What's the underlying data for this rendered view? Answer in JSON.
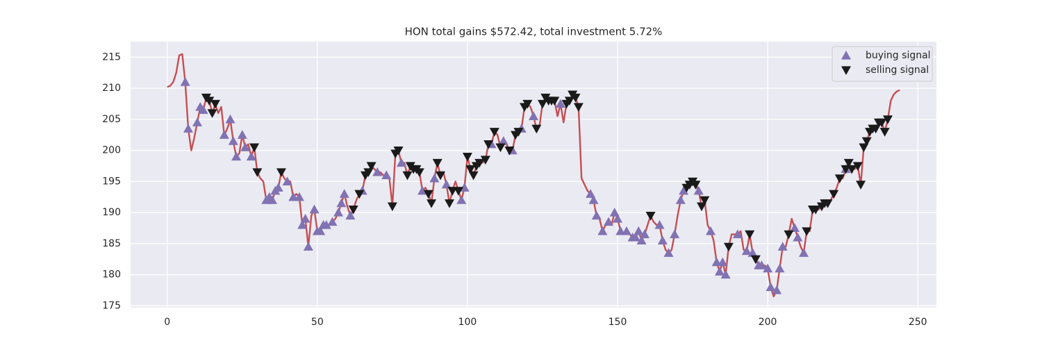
{
  "chart_data": {
    "type": "line",
    "title": "HON total gains $572.42, total investment 5.72%",
    "xlim": [
      -12.2,
      256.2
    ],
    "ylim": [
      174.7,
      217.5
    ],
    "xticks": [
      0,
      50,
      100,
      150,
      200,
      250
    ],
    "yticks": [
      175,
      180,
      185,
      190,
      195,
      200,
      205,
      210,
      215
    ],
    "grid": true,
    "legend": "upper right",
    "line": {
      "color": "#c44e52",
      "values": [
        210.2,
        210.4,
        211,
        212.5,
        215.3,
        215.5,
        211,
        203.5,
        200,
        202,
        204.5,
        207,
        206.5,
        208.5,
        208,
        206,
        207.5,
        206,
        207,
        202.5,
        203.5,
        205,
        201.5,
        199,
        199.5,
        202.5,
        200.5,
        201,
        199,
        200.5,
        196.5,
        195.5,
        195,
        192,
        192.5,
        192,
        193.5,
        194,
        196.5,
        195.5,
        195,
        195,
        192.5,
        193,
        192.5,
        188,
        189,
        184.5,
        189.5,
        190.5,
        187,
        187,
        188,
        188,
        188,
        188.5,
        189,
        190,
        191.5,
        193,
        191,
        189.5,
        190.5,
        192,
        193,
        193.5,
        196,
        196.5,
        197.5,
        197,
        196.5,
        196.5,
        196,
        196,
        195.5,
        191,
        199.5,
        200,
        198,
        198,
        196,
        197.5,
        197,
        197,
        196.5,
        193.5,
        194,
        193,
        191.5,
        195.5,
        198,
        196,
        196.5,
        194.5,
        191.5,
        193.5,
        195,
        193.5,
        192,
        194,
        199,
        197,
        196,
        197.5,
        198,
        198,
        198.5,
        201,
        201,
        203,
        202.5,
        200.5,
        201.5,
        201,
        200,
        200,
        202.5,
        203,
        203.5,
        207,
        207.5,
        207,
        205.5,
        203.5,
        204,
        207.5,
        208.5,
        208,
        208,
        208,
        205.5,
        207.5,
        204.5,
        207.5,
        208,
        209,
        208.5,
        207,
        195.5,
        194.5,
        193.5,
        193,
        192,
        189.5,
        189,
        187,
        188,
        188.5,
        188,
        190,
        189,
        187,
        186.5,
        187,
        186.5,
        186,
        186,
        187,
        185.5,
        186.5,
        188,
        189.5,
        188.5,
        188,
        188,
        185.5,
        184,
        183.5,
        184,
        186.5,
        189.5,
        192,
        193.5,
        194,
        194.5,
        195,
        194.5,
        193.5,
        191,
        192,
        188,
        187,
        185.5,
        182,
        180.5,
        182,
        180,
        184.5,
        186.5,
        186.5,
        186.5,
        187,
        184,
        183.8,
        186.5,
        183.5,
        182.5,
        181.5,
        181.5,
        181.5,
        181,
        178,
        176.5,
        177.5,
        181,
        184.5,
        184.5,
        186.5,
        189,
        187.5,
        186,
        184.5,
        183.5,
        187,
        187,
        190.5,
        190.5,
        190.5,
        191,
        191.5,
        191.5,
        192,
        193,
        194,
        195.5,
        195.5,
        197,
        198,
        197,
        197,
        197.5,
        194.5,
        200.5,
        201.5,
        203,
        203.5,
        203.5,
        204.5,
        204.5,
        203,
        205,
        208,
        209,
        209.5,
        209.7
      ]
    },
    "series": [
      {
        "name": "buying signal",
        "color": "#8172b2",
        "marker": "^",
        "x": [
          6,
          7,
          10,
          11,
          12,
          19,
          21,
          22,
          23,
          25,
          26,
          28,
          33,
          34,
          35,
          36,
          37,
          40,
          42,
          44,
          45,
          46,
          47,
          49,
          50,
          51,
          52,
          53,
          55,
          57,
          58,
          59,
          61,
          65,
          70,
          73,
          78,
          85,
          89,
          93,
          98,
          99,
          108,
          112,
          115,
          118,
          122,
          131,
          141,
          142,
          143,
          145,
          147,
          149,
          150,
          151,
          153,
          155,
          156,
          157,
          158,
          159,
          164,
          165,
          167,
          169,
          171,
          172,
          177,
          181,
          183,
          184,
          185,
          186,
          190,
          193,
          195,
          197,
          198,
          200,
          201,
          203,
          204,
          205,
          209,
          210,
          212,
          226
        ],
        "values": [
          211,
          203.5,
          204.5,
          207,
          206.5,
          202.5,
          205,
          201.5,
          199,
          202.5,
          200.5,
          199,
          192,
          192.5,
          192,
          193.5,
          194,
          195,
          192.5,
          192.5,
          188,
          189,
          184.5,
          190.5,
          187,
          187,
          188,
          188,
          188.5,
          190,
          191.5,
          193,
          189.5,
          193.5,
          196.5,
          196,
          198,
          193.5,
          195.5,
          194.5,
          192,
          194,
          201,
          201.5,
          200,
          203.5,
          205.5,
          207.5,
          193,
          192,
          189.5,
          187,
          188.5,
          190,
          189,
          187,
          187,
          186,
          186,
          187,
          185.5,
          186.5,
          188,
          185.5,
          183.5,
          186.5,
          192,
          193.5,
          193.5,
          187,
          182,
          180.5,
          182,
          180,
          186.5,
          183.8,
          183.5,
          181.5,
          181.5,
          181,
          178,
          177.5,
          181,
          184.5,
          187.5,
          186,
          183.5,
          197
        ]
      },
      {
        "name": "selling signal",
        "color": "#1a1a1a",
        "marker": "v",
        "x": [
          13,
          14,
          15,
          16,
          29,
          30,
          38,
          62,
          64,
          66,
          67,
          68,
          75,
          76,
          77,
          80,
          81,
          82,
          83,
          84,
          87,
          88,
          90,
          91,
          94,
          95,
          97,
          100,
          101,
          102,
          103,
          104,
          106,
          107,
          109,
          111,
          114,
          116,
          117,
          119,
          120,
          123,
          125,
          126,
          127,
          128,
          129,
          133,
          134,
          135,
          136,
          137,
          161,
          173,
          174,
          175,
          176,
          178,
          179,
          187,
          194,
          196,
          207,
          213,
          215,
          216,
          218,
          219,
          220,
          222,
          224,
          226,
          227,
          228,
          230,
          231,
          232,
          233,
          234,
          235,
          236,
          237,
          238,
          239,
          240
        ],
        "values": [
          208.5,
          208,
          206,
          207.5,
          200.5,
          196.5,
          196.5,
          190.5,
          193,
          196,
          196.5,
          197.5,
          191,
          199.5,
          200,
          196,
          197.5,
          197,
          197,
          196.5,
          193,
          191.5,
          198,
          196,
          191.5,
          193.5,
          193.5,
          199,
          197,
          196,
          197.5,
          198,
          198.5,
          201,
          203,
          200.5,
          200,
          202.5,
          203,
          207,
          207.5,
          203.5,
          207.5,
          208.5,
          208,
          208,
          208,
          207.5,
          208,
          209,
          208.5,
          207,
          189.5,
          194,
          194.5,
          195,
          194.5,
          191,
          192,
          184.5,
          186.5,
          182.5,
          186.5,
          187,
          190.5,
          190.5,
          191,
          191.5,
          191.5,
          193,
          195.5,
          197,
          198,
          197,
          197.5,
          194.5,
          200.5,
          201.5,
          203,
          203.5,
          203.5,
          204.5,
          204.5,
          203,
          205
        ]
      }
    ]
  }
}
